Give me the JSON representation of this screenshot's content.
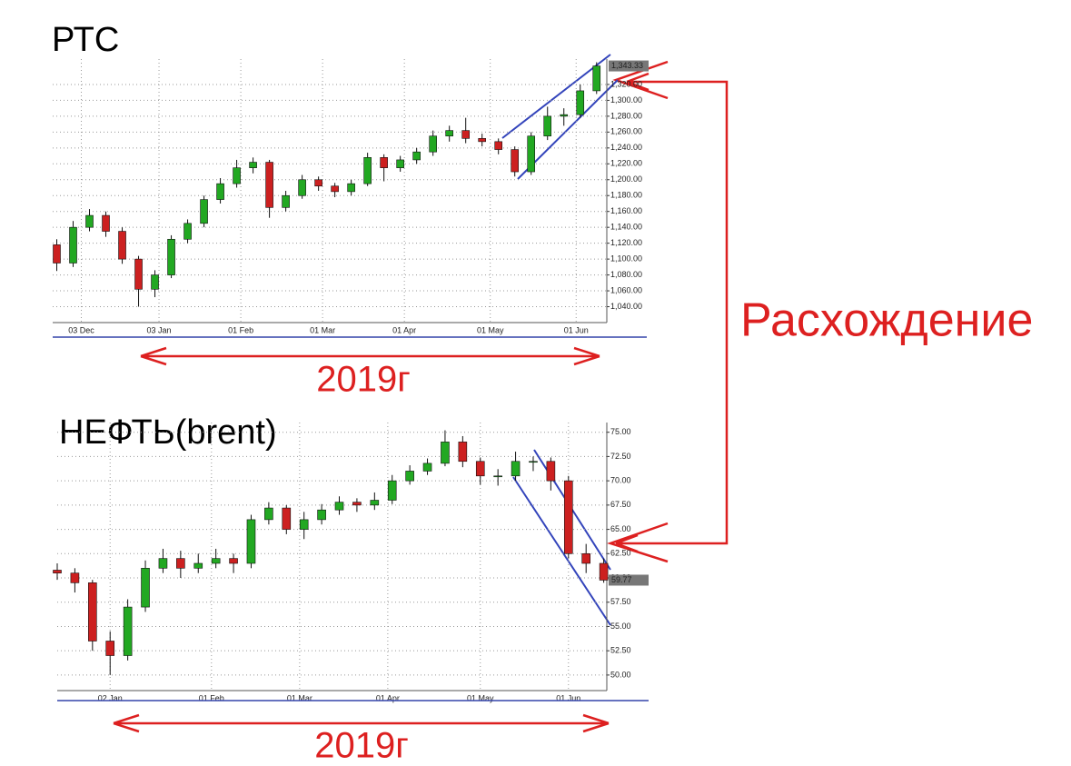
{
  "chart_data": [
    {
      "type": "candlestick",
      "title": "РТС",
      "x": [
        1,
        5,
        9,
        13,
        17,
        21,
        25,
        29,
        33,
        37,
        41,
        45,
        49,
        53,
        57,
        61,
        65,
        69,
        73,
        77,
        81,
        85,
        89,
        93,
        97,
        101,
        105,
        109,
        113,
        117,
        121,
        125,
        129,
        133
      ],
      "open": [
        1118,
        1095,
        1140,
        1155,
        1135,
        1100,
        1062,
        1080,
        1125,
        1145,
        1175,
        1195,
        1215,
        1222,
        1165,
        1180,
        1200,
        1192,
        1185,
        1195,
        1228,
        1215,
        1225,
        1235,
        1255,
        1262,
        1252,
        1248,
        1238,
        1210,
        1255,
        1280,
        1282,
        1312
      ],
      "high": [
        1125,
        1148,
        1163,
        1160,
        1140,
        1104,
        1086,
        1130,
        1150,
        1180,
        1202,
        1225,
        1228,
        1225,
        1186,
        1206,
        1204,
        1196,
        1200,
        1234,
        1232,
        1230,
        1240,
        1262,
        1268,
        1278,
        1258,
        1252,
        1242,
        1260,
        1292,
        1290,
        1320,
        1348
      ],
      "low": [
        1085,
        1090,
        1135,
        1128,
        1094,
        1040,
        1052,
        1076,
        1120,
        1140,
        1170,
        1190,
        1208,
        1152,
        1160,
        1176,
        1186,
        1178,
        1180,
        1192,
        1198,
        1210,
        1220,
        1230,
        1248,
        1246,
        1242,
        1232,
        1204,
        1206,
        1250,
        1268,
        1278,
        1308
      ],
      "close": [
        1095,
        1140,
        1155,
        1135,
        1100,
        1062,
        1080,
        1125,
        1145,
        1175,
        1195,
        1215,
        1222,
        1165,
        1180,
        1200,
        1192,
        1185,
        1195,
        1228,
        1215,
        1225,
        1235,
        1255,
        1262,
        1252,
        1248,
        1238,
        1210,
        1255,
        1280,
        1282,
        1312,
        1343.33
      ],
      "xlim": [
        0,
        135.5
      ],
      "xticks": [
        {
          "value": 7,
          "label": "03 Dec"
        },
        {
          "value": 26,
          "label": "03 Jan"
        },
        {
          "value": 46,
          "label": "01 Feb"
        },
        {
          "value": 66,
          "label": "01 Mar"
        },
        {
          "value": 86,
          "label": "01 Apr"
        },
        {
          "value": 107,
          "label": "01 May"
        },
        {
          "value": 128,
          "label": "01 Jun"
        }
      ],
      "ylim": [
        1020,
        1352
      ],
      "yticks": [
        {
          "value": 1040,
          "label": "1,040.00"
        },
        {
          "value": 1060,
          "label": "1,060.00"
        },
        {
          "value": 1080,
          "label": "1,080.00"
        },
        {
          "value": 1100,
          "label": "1,100.00"
        },
        {
          "value": 1120,
          "label": "1,120.00"
        },
        {
          "value": 1140,
          "label": "1,140.00"
        },
        {
          "value": 1160,
          "label": "1,160.00"
        },
        {
          "value": 1180,
          "label": "1,180.00"
        },
        {
          "value": 1200,
          "label": "1,200.00"
        },
        {
          "value": 1220,
          "label": "1,220.00"
        },
        {
          "value": 1240,
          "label": "1,240.00"
        },
        {
          "value": 1260,
          "label": "1,260.00"
        },
        {
          "value": 1280,
          "label": "1,280.00"
        },
        {
          "value": 1300,
          "label": "1,300.00"
        },
        {
          "value": 1320,
          "label": "1,320.00"
        }
      ],
      "last_price": {
        "value": 1343.33,
        "label": "1,343.33"
      },
      "up_color": "#22a822",
      "down_color": "#cc2020",
      "grid": true
    },
    {
      "type": "candlestick",
      "title": "НЕФТЬ(brent)",
      "x": [
        0,
        4,
        8,
        12,
        16,
        20,
        24,
        28,
        32,
        36,
        40,
        44,
        48,
        52,
        56,
        60,
        64,
        68,
        72,
        76,
        80,
        84,
        88,
        92,
        96,
        100,
        104,
        108,
        112,
        116,
        120,
        124
      ],
      "open": [
        60.8,
        60.5,
        59.5,
        53.5,
        52,
        57,
        61,
        62,
        61,
        61.5,
        62,
        61.5,
        66,
        67.2,
        65,
        66,
        67,
        67.8,
        67.5,
        68,
        70,
        71,
        71.8,
        74,
        72,
        70.5,
        70.5,
        72,
        72,
        70,
        62.5,
        61.5
      ],
      "high": [
        61.5,
        61,
        59.8,
        54.5,
        57.8,
        61.8,
        63,
        62.8,
        62.5,
        63,
        62.5,
        66.5,
        67.8,
        67.5,
        66.8,
        67.6,
        68.4,
        68.2,
        68.8,
        70.6,
        71.6,
        72.3,
        75.2,
        74.6,
        72.4,
        71.2,
        73,
        72.5,
        72.4,
        70.5,
        63.5,
        62
      ],
      "low": [
        59.8,
        58.5,
        52.5,
        50,
        51.5,
        56.5,
        60.5,
        60,
        60.5,
        61,
        60.5,
        61,
        65.5,
        64.5,
        64,
        65.5,
        66.5,
        66.8,
        67,
        67.6,
        69.6,
        70.6,
        71.5,
        71.4,
        69.6,
        69.5,
        70,
        71,
        69,
        62,
        60.5,
        59.5
      ],
      "close": [
        60.5,
        59.5,
        53.5,
        52,
        57,
        61,
        62,
        61,
        61.5,
        62,
        61.5,
        66,
        67.2,
        65,
        66,
        67,
        67.8,
        67.5,
        68,
        70,
        71,
        71.8,
        74,
        72,
        70.5,
        70.5,
        72,
        72,
        70,
        62.5,
        61.5,
        59.77
      ],
      "xlim": [
        0,
        124.7
      ],
      "xticks": [
        {
          "value": 12,
          "label": "02 Jan"
        },
        {
          "value": 35,
          "label": "01 Feb"
        },
        {
          "value": 55,
          "label": "01 Mar"
        },
        {
          "value": 75,
          "label": "01 Apr"
        },
        {
          "value": 96,
          "label": "01 May"
        },
        {
          "value": 116,
          "label": "01 Jun"
        }
      ],
      "ylim": [
        48.4,
        76
      ],
      "yticks": [
        {
          "value": 50,
          "label": "50.00"
        },
        {
          "value": 52.5,
          "label": "52.50"
        },
        {
          "value": 55,
          "label": "55.00"
        },
        {
          "value": 57.5,
          "label": "57.50"
        },
        {
          "value": 60,
          "label": "60.00"
        },
        {
          "value": 62.5,
          "label": "62.50"
        },
        {
          "value": 65,
          "label": "65.00"
        },
        {
          "value": 67.5,
          "label": "67.50"
        },
        {
          "value": 70,
          "label": "70.00"
        },
        {
          "value": 72.5,
          "label": "72.50"
        },
        {
          "value": 75,
          "label": "75.00"
        }
      ],
      "last_price": {
        "value": 59.77,
        "label": "59.77"
      },
      "up_color": "#22a822",
      "down_color": "#cc2020",
      "grid": true
    }
  ],
  "annotations": {
    "year_top": "2019г",
    "year_bottom": "2019г",
    "divergence": "Расхождение"
  }
}
